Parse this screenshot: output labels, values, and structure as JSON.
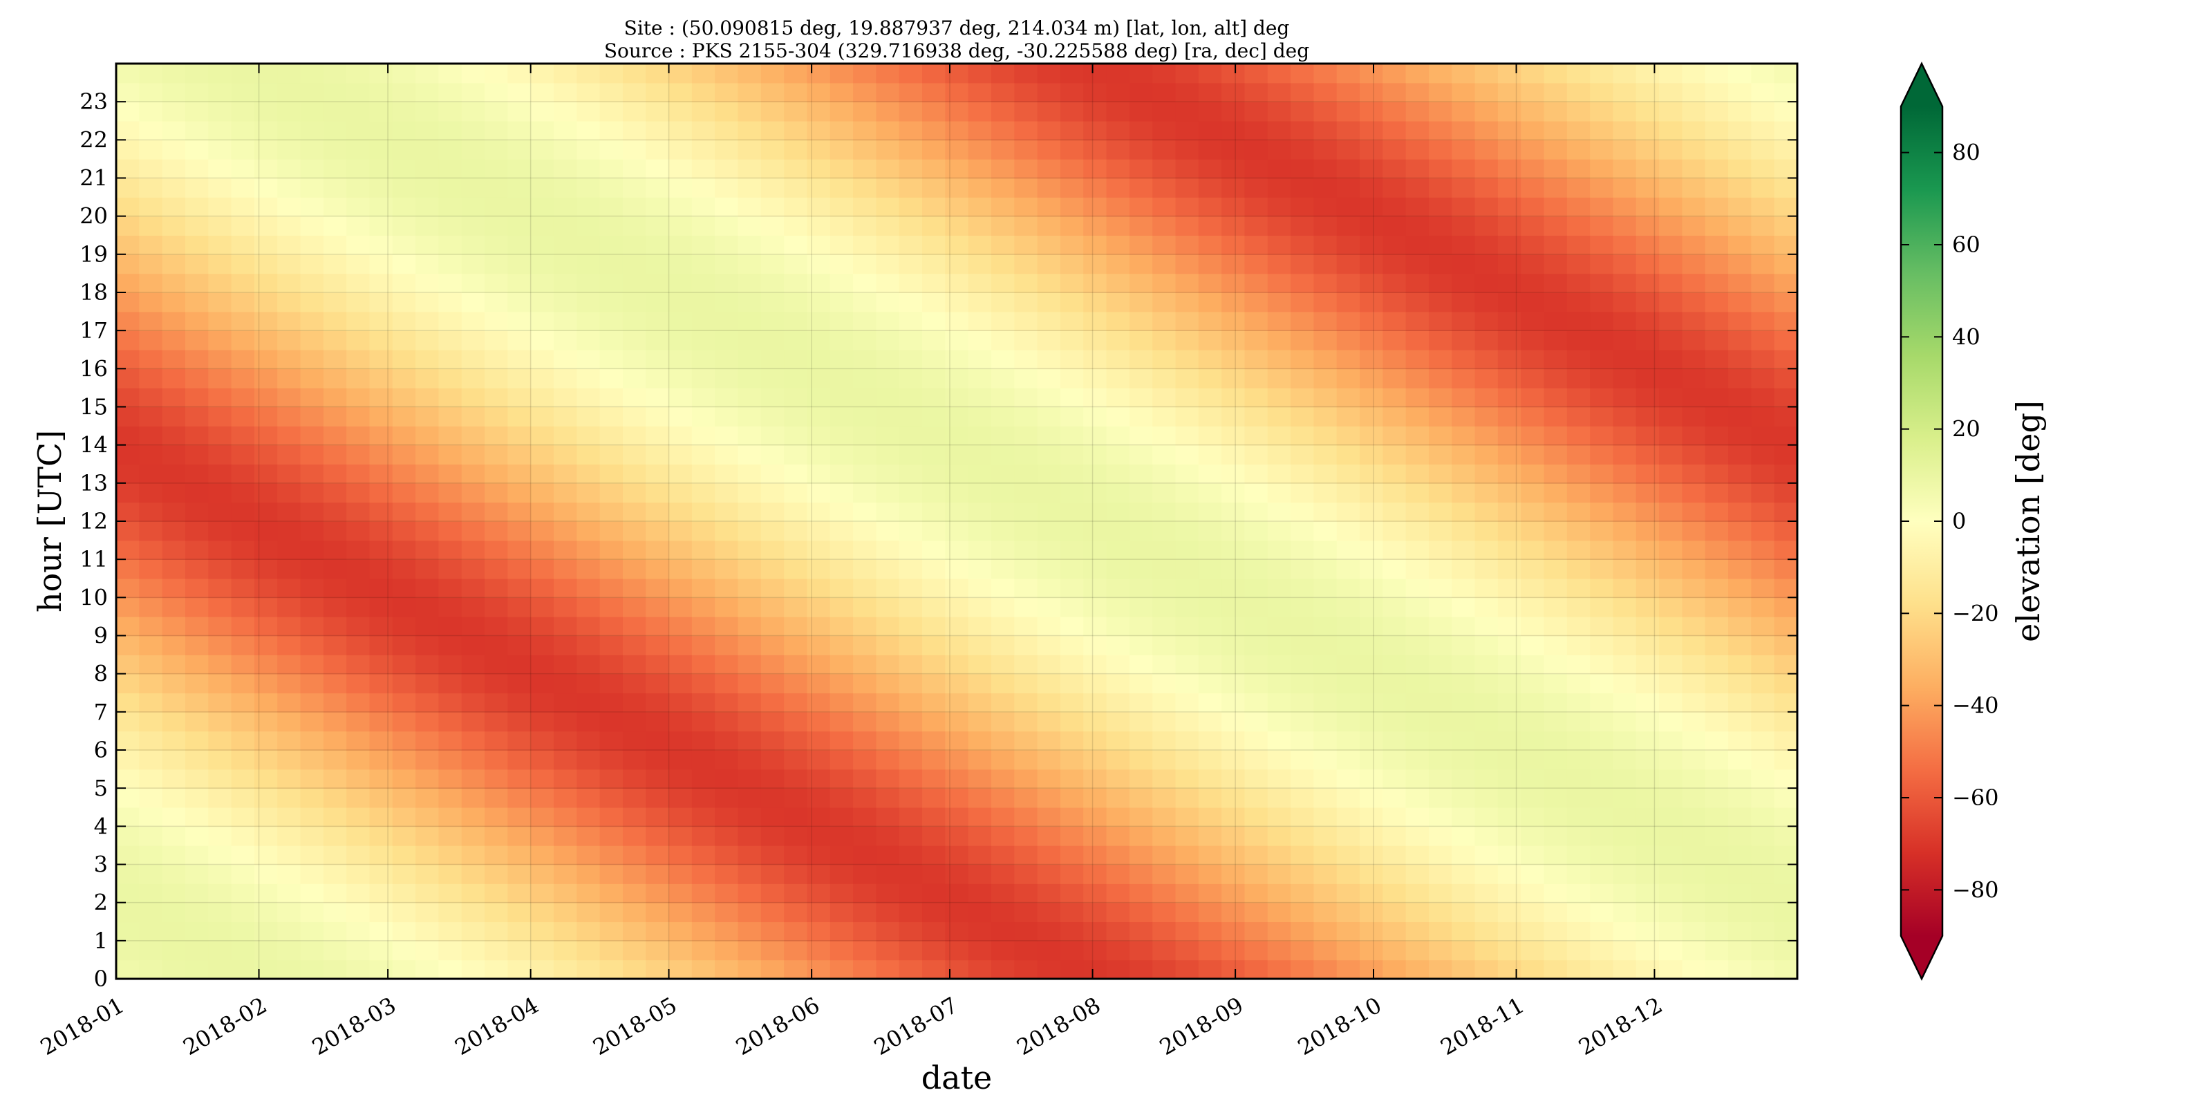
{
  "chart_data": {
    "type": "heatmap",
    "title": "Site : (50.090815 deg, 19.887937 deg, 214.034 m) [lat, lon, alt] deg",
    "subtitle": "Source : PKS 2155-304 (329.716938 deg, -30.225588 deg) [ra, dec] deg",
    "xlabel": "date",
    "ylabel": "hour [UTC]",
    "colorbar_label": "elevation [deg]",
    "x_range": [
      "2018-01-01",
      "2018-12-31"
    ],
    "x_ticks": [
      "2018-01",
      "2018-02",
      "2018-03",
      "2018-04",
      "2018-05",
      "2018-06",
      "2018-07",
      "2018-08",
      "2018-09",
      "2018-10",
      "2018-11",
      "2018-12"
    ],
    "y_range": [
      0,
      24
    ],
    "y_ticks": [
      "0",
      "1",
      "2",
      "3",
      "4",
      "5",
      "6",
      "7",
      "8",
      "9",
      "10",
      "11",
      "12",
      "13",
      "14",
      "15",
      "16",
      "17",
      "18",
      "19",
      "20",
      "21",
      "22",
      "23"
    ],
    "colorbar_range": [
      -90,
      90
    ],
    "colorbar_ticks": [
      "−80",
      "−60",
      "−40",
      "−20",
      "0",
      "20",
      "40",
      "60",
      "80"
    ],
    "colormap": "RdYlGn",
    "colorbar_extend": "both",
    "grid": true,
    "site": {
      "lat_deg": 50.090815,
      "lon_deg": 19.887937,
      "alt_m": 214.034
    },
    "source": {
      "name": "PKS 2155-304",
      "ra_deg": 329.716938,
      "dec_deg": -30.225588
    },
    "value_range_shown": [
      -70,
      10
    ]
  }
}
